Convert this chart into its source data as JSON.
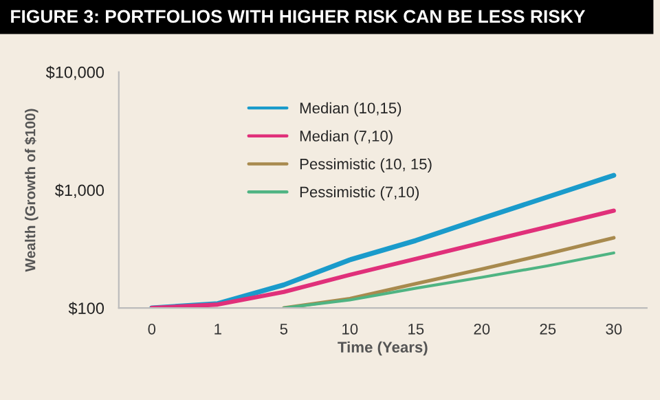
{
  "chart_data": {
    "type": "line",
    "title": "FIGURE 3: PORTFOLIOS WITH HIGHER RISK CAN BE LESS RISKY",
    "xlabel": "Time (Years)",
    "ylabel": "Wealth (Growth of $100)",
    "categories": [
      "0",
      "1",
      "5",
      "10",
      "15",
      "20",
      "25",
      "30"
    ],
    "series": [
      {
        "name": "Median (10,15)",
        "color": "#1a9bcb",
        "values": [
          100,
          109,
          157,
          256,
          373,
          574,
          874,
          1333
        ]
      },
      {
        "name": "Median (7,10)",
        "color": "#e0307a",
        "values": [
          100,
          107,
          137,
          191,
          261,
          357,
          488,
          668
        ]
      },
      {
        "name": "Pessimistic (10, 15)",
        "color": "#a88a4e",
        "values": [
          null,
          null,
          100,
          120,
          161,
          214,
          288,
          394
        ]
      },
      {
        "name": "Pessimistic (7,10)",
        "color": "#4fb483",
        "values": [
          null,
          null,
          100,
          117,
          147,
          182,
          228,
          293
        ]
      }
    ],
    "log": "y",
    "ylim": [
      100,
      10000
    ],
    "yticks": [
      {
        "value": 100,
        "label": "$100"
      },
      {
        "value": 1000,
        "label": "$1,000"
      },
      {
        "value": 10000,
        "label": "$10,000"
      }
    ],
    "grid": false,
    "legend": "top left",
    "marker": "none",
    "line_style": "solid"
  }
}
